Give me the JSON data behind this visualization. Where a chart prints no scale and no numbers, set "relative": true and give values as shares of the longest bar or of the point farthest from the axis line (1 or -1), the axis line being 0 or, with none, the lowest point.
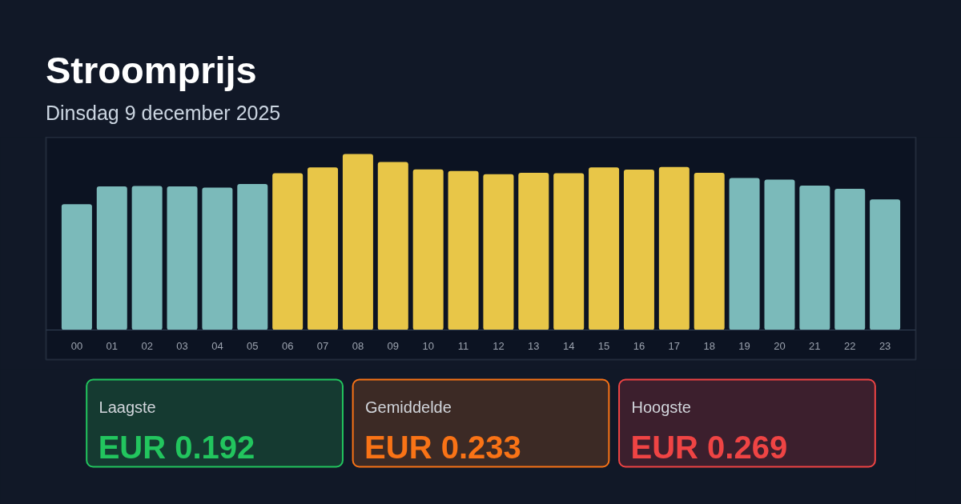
{
  "chart_data": [
    {
      "type": "bar",
      "title": "Stroomprijs",
      "subtitle": "Dinsdag 9 december 2025",
      "relative": true,
      "categories": [
        "00",
        "01",
        "02",
        "03",
        "04",
        "05",
        "06",
        "07",
        "08",
        "09",
        "10",
        "11",
        "12",
        "13",
        "14",
        "15",
        "16",
        "17",
        "18",
        "19",
        "20",
        "21",
        "22",
        "23"
      ],
      "values": [
        0.714,
        0.816,
        0.818,
        0.816,
        0.809,
        0.829,
        0.89,
        0.924,
        1,
        0.954,
        0.912,
        0.903,
        0.885,
        0.893,
        0.89,
        0.924,
        0.911,
        0.926,
        0.893,
        0.863,
        0.854,
        0.82,
        0.802,
        0.742
      ],
      "colors": [
        "#7bbaba",
        "#7bbaba",
        "#7bbaba",
        "#7bbaba",
        "#7bbaba",
        "#7bbaba",
        "#e8c648",
        "#e8c648",
        "#e8c648",
        "#e8c648",
        "#e8c648",
        "#e8c648",
        "#e8c648",
        "#e8c648",
        "#e8c648",
        "#e8c648",
        "#e8c648",
        "#e8c648",
        "#e8c648",
        "#7bbaba",
        "#7bbaba",
        "#7bbaba",
        "#7bbaba",
        "#7bbaba"
      ]
    },
    {
      "type": "other",
      "annotations": [
        "Laagste",
        "EUR 0.192",
        "Gemiddelde",
        "EUR 0.233",
        "Hoogste",
        "EUR 0.269"
      ]
    }
  ]
}
